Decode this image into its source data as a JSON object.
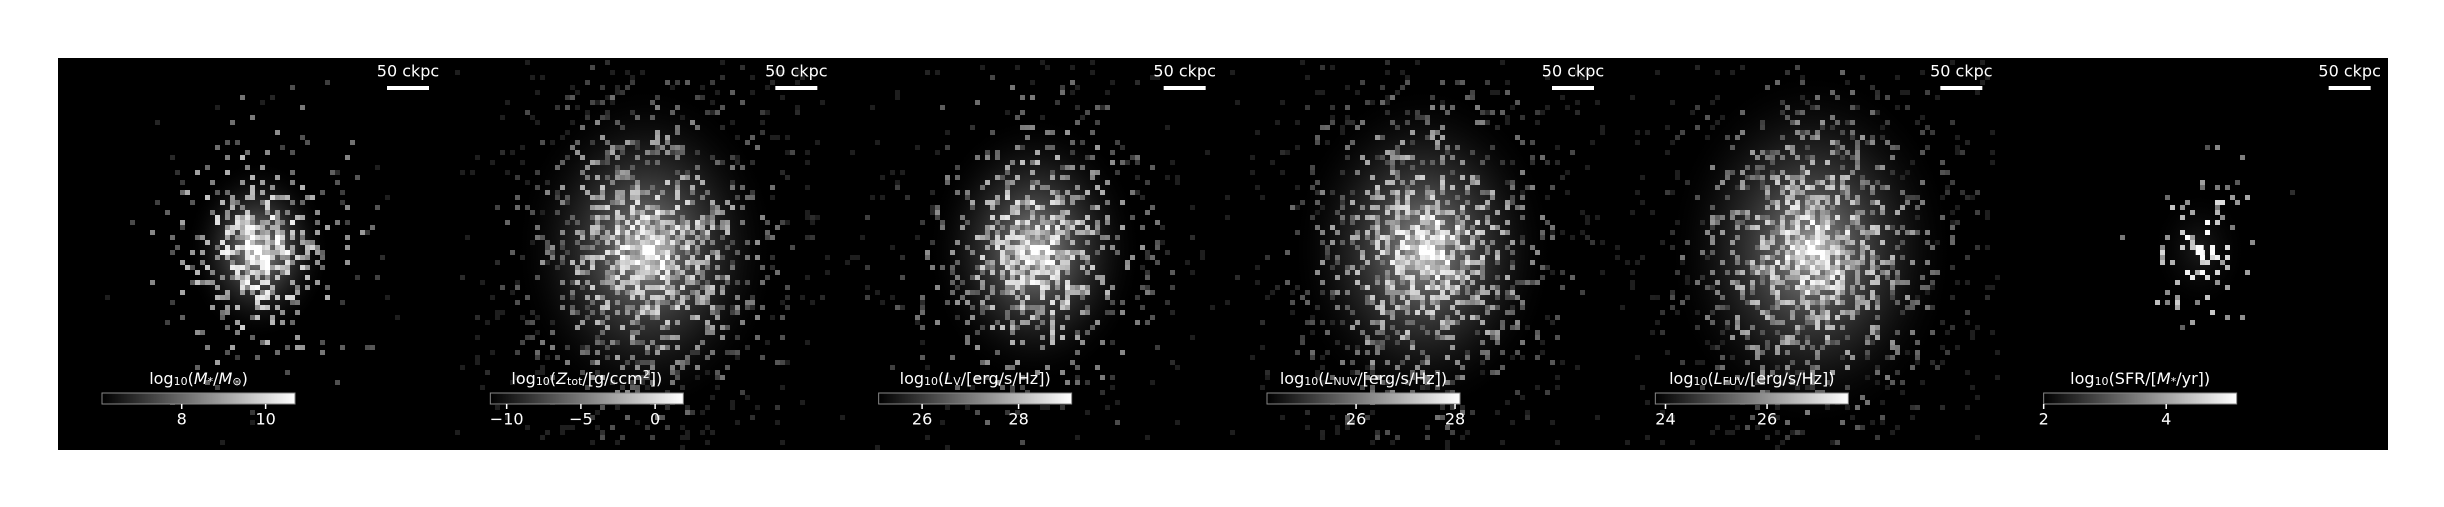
{
  "panels": [
    {
      "scale_bar": "50 ckpc",
      "colorbar": {
        "label": [
          {
            "text": "log"
          },
          {
            "text": "10",
            "sub": true
          },
          {
            "text": "("
          },
          {
            "text": "M",
            "italic": true
          },
          {
            "text": "*",
            "sub": true
          },
          {
            "text": "/"
          },
          {
            "text": "M",
            "italic": true
          },
          {
            "text": "⊙",
            "sub": true
          },
          {
            "text": ")"
          }
        ],
        "lim": [
          6.1,
          10.7
        ],
        "ticks": [
          8,
          10
        ]
      }
    },
    {
      "scale_bar": "50 ckpc",
      "colorbar": {
        "label": [
          {
            "text": "log"
          },
          {
            "text": "10",
            "sub": true
          },
          {
            "text": "("
          },
          {
            "text": "Z",
            "italic": true
          },
          {
            "text": "tot",
            "sub": true
          },
          {
            "text": "/[g/ccm"
          },
          {
            "text": "2",
            "sup": true
          },
          {
            "text": "])"
          }
        ],
        "lim": [
          -11.1,
          1.9
        ],
        "ticks": [
          {
            "value": -10,
            "label": "−10"
          },
          {
            "value": -5,
            "label": "−5"
          },
          0
        ]
      }
    },
    {
      "scale_bar": "50 ckpc",
      "colorbar": {
        "label": [
          {
            "text": "log"
          },
          {
            "text": "10",
            "sub": true
          },
          {
            "text": "("
          },
          {
            "text": "L",
            "italic": true
          },
          {
            "text": "V",
            "sub": true
          },
          {
            "text": "/[erg/s/Hz])"
          }
        ],
        "lim": [
          25.1,
          29.1
        ],
        "ticks": [
          26,
          28
        ]
      }
    },
    {
      "scale_bar": "50 ckpc",
      "colorbar": {
        "label": [
          {
            "text": "log"
          },
          {
            "text": "10",
            "sub": true
          },
          {
            "text": "("
          },
          {
            "text": "L",
            "italic": true
          },
          {
            "text": "NUV",
            "sub": true
          },
          {
            "text": "/[erg/s/Hz])"
          }
        ],
        "lim": [
          24.2,
          28.1
        ],
        "ticks": [
          26,
          28
        ]
      }
    },
    {
      "scale_bar": "50 ckpc",
      "colorbar": {
        "label": [
          {
            "text": "log"
          },
          {
            "text": "10",
            "sub": true
          },
          {
            "text": "("
          },
          {
            "text": "L",
            "italic": true
          },
          {
            "text": "FUV",
            "sub": true
          },
          {
            "text": "/[erg/s/Hz])"
          }
        ],
        "lim": [
          23.8,
          27.6
        ],
        "ticks": [
          24,
          26
        ]
      }
    },
    {
      "scale_bar": "50 ckpc",
      "colorbar": {
        "label": [
          {
            "text": "log"
          },
          {
            "text": "10",
            "sub": true
          },
          {
            "text": "(SFR/["
          },
          {
            "text": "M",
            "italic": true
          },
          {
            "text": "*",
            "sub": true
          },
          {
            "text": "/yr])"
          }
        ],
        "lim": [
          2.0,
          5.15
        ],
        "ticks": [
          2,
          4
        ]
      }
    }
  ]
}
